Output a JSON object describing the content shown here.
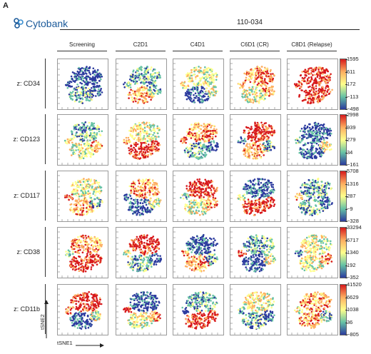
{
  "panel_label": "A",
  "logo_text": "Cytobank",
  "sample_id": "110-034",
  "columns": [
    "Screening",
    "C2D1",
    "C4D1",
    "C6D1 (CR)",
    "C8D1 (Relapse)"
  ],
  "rows": [
    {
      "label": "z: CD34",
      "ticks": [
        "1595",
        "611",
        "172",
        "−113",
        "−498"
      ]
    },
    {
      "label": "z: CD123",
      "ticks": [
        "2998",
        "939",
        "279",
        "34",
        "−161"
      ]
    },
    {
      "label": "z: CD117",
      "ticks": [
        "5708",
        "1316",
        "287",
        "−9",
        "−328"
      ]
    },
    {
      "label": "z: CD38",
      "ticks": [
        "33294",
        "6717",
        "1340",
        "192",
        "−352"
      ]
    },
    {
      "label": "z: CD11b",
      "ticks": [
        "41520",
        "6629",
        "1038",
        "36",
        "−805"
      ]
    }
  ],
  "axis_x_label": "tSNE1",
  "axis_y_label": "tSNE2",
  "colors": {
    "high": "#d7191c",
    "mid_high": "#fdae61",
    "mid": "#ffff8c",
    "mid_low": "#66c2a5",
    "low": "#2b3a9e",
    "logo_blue": "#1b5a9a"
  },
  "icons": [
    "cytobank-logo-icon",
    "axis-arrow-icon"
  ]
}
